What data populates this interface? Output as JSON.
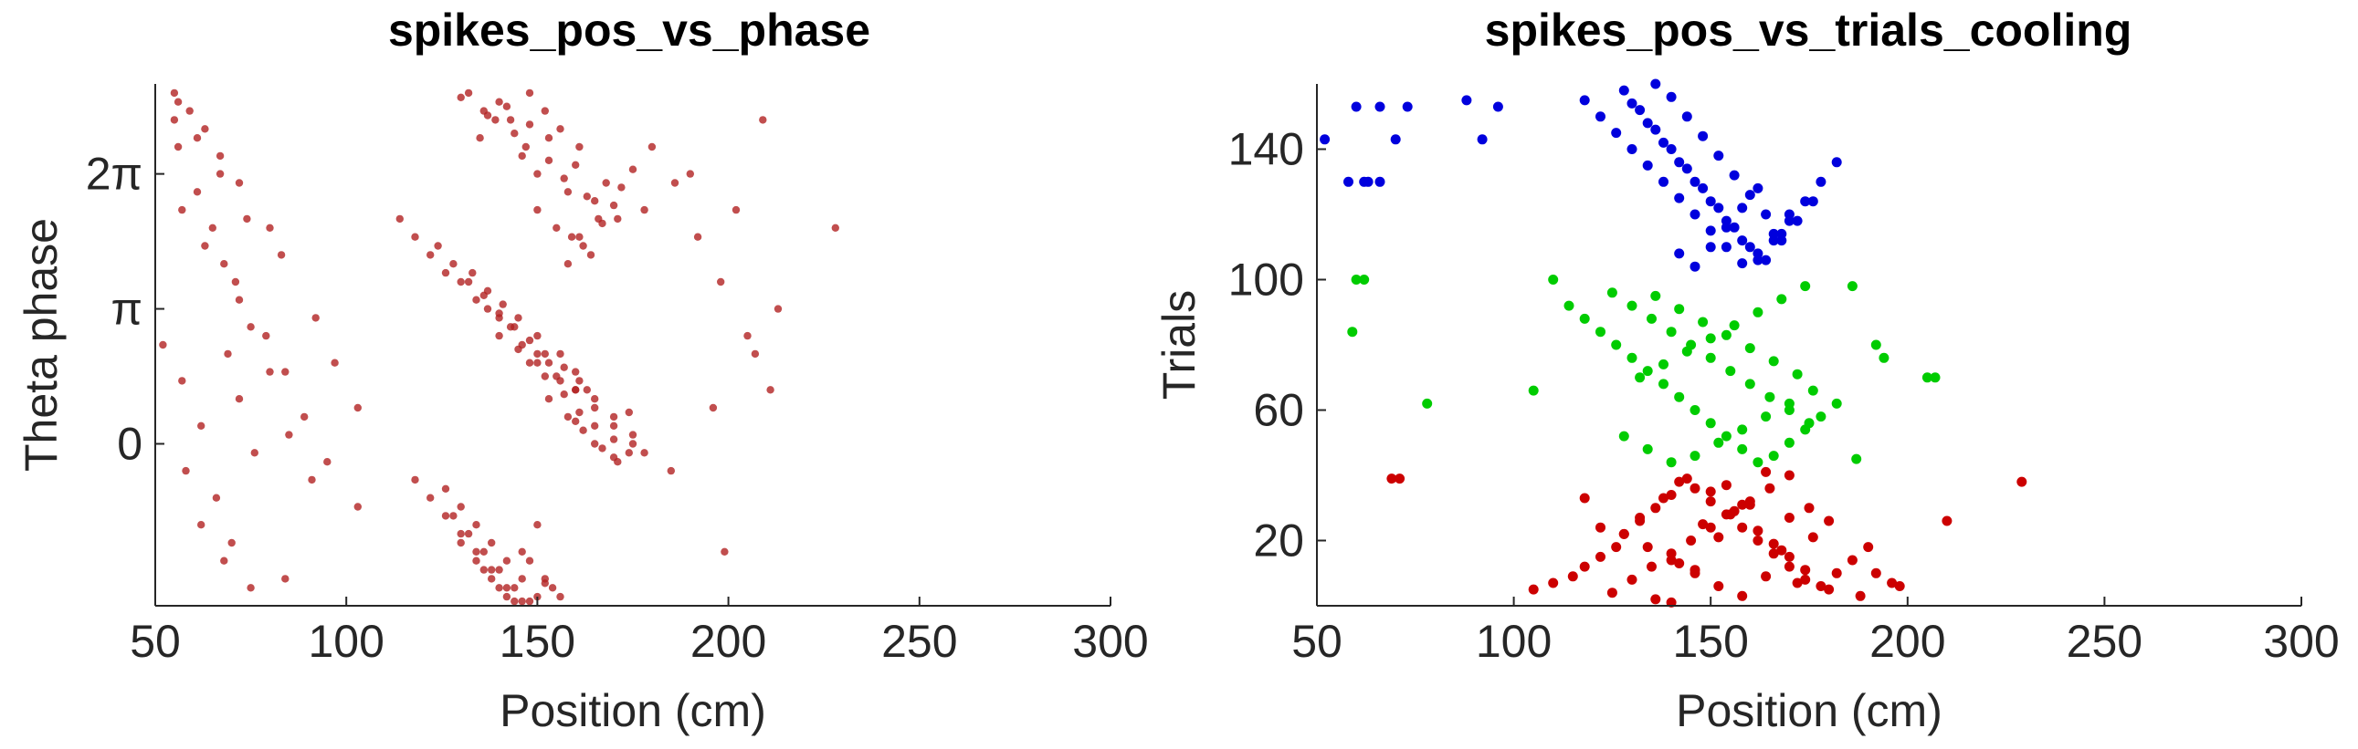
{
  "chart_data": [
    {
      "type": "scatter",
      "title": "spikes_pos_vs_phase",
      "xlabel": "Position (cm)",
      "ylabel": "Theta phase",
      "xlim": [
        50,
        300
      ],
      "ylim": [
        -1.8,
        4.0
      ],
      "xticks": [
        50,
        100,
        150,
        200,
        250,
        300
      ],
      "xtick_labels": [
        "50",
        "100",
        "150",
        "200",
        "250",
        "300"
      ],
      "yticks": [
        0,
        1.5,
        3.0
      ],
      "ytick_labels": [
        "0",
        "π",
        "2π"
      ],
      "grid": false,
      "color": "#b22222",
      "series": [
        {
          "x": [
            55,
            56,
            61,
            65,
            68,
            72,
            79,
            84,
            89,
            95,
            103,
            56,
            61,
            67,
            74,
            83,
            92,
            97,
            103,
            58,
            62,
            68,
            71,
            75,
            80,
            85,
            91,
            57,
            63,
            69,
            72,
            76,
            84,
            52,
            57,
            62,
            66,
            70,
            75,
            80,
            55,
            59,
            63,
            67,
            72,
            148,
            140,
            143,
            152,
            156,
            161,
            135,
            130,
            146,
            150,
            158,
            165,
            160,
            153,
            148,
            142,
            137,
            132,
            150,
            155,
            162,
            168,
            171,
            163,
            157,
            153,
            147,
            144,
            139,
            136,
            159,
            164,
            167,
            170,
            172,
            175,
            178,
            158,
            161,
            166,
            114,
            118,
            122,
            126,
            130,
            134,
            137,
            140,
            143,
            146,
            150,
            153,
            156,
            160,
            124,
            128,
            133,
            137,
            141,
            145,
            150,
            156,
            160,
            163,
            132,
            136,
            140,
            144,
            148,
            152,
            157,
            161,
            165,
            170,
            140,
            145,
            150,
            155,
            160,
            165,
            170,
            175,
            178,
            148,
            152,
            157,
            161,
            165,
            170,
            174,
            153,
            158,
            162,
            167,
            171,
            175,
            160,
            165,
            170,
            174,
            118,
            122,
            126,
            130,
            134,
            138,
            142,
            146,
            126,
            130,
            134,
            138,
            142,
            146,
            150,
            128,
            132,
            136,
            140,
            144,
            148,
            152,
            130,
            134,
            138,
            142,
            146,
            150,
            154,
            136,
            140,
            144,
            148,
            152,
            156,
            180,
            186,
            192,
            198,
            205,
            211,
            213,
            228,
            185,
            196,
            207,
            202,
            209,
            190,
            199
          ],
          "y": [
            3.6,
            3.3,
            2.8,
            2.4,
            2.0,
            1.6,
            1.2,
            0.8,
            0.3,
            -0.2,
            -0.7,
            3.8,
            3.4,
            3.0,
            2.5,
            2.1,
            1.4,
            0.9,
            0.4,
            -0.3,
            -0.9,
            -1.3,
            1.8,
            1.3,
            0.8,
            0.1,
            -0.4,
            2.6,
            2.2,
            1.0,
            0.5,
            -0.1,
            -1.5,
            1.1,
            0.7,
            0.2,
            -0.6,
            -1.1,
            -1.6,
            2.4,
            3.9,
            3.7,
            3.5,
            3.2,
            2.9,
            3.9,
            3.8,
            3.6,
            3.7,
            3.5,
            3.3,
            3.4,
            3.85,
            3.2,
            3.0,
            2.8,
            2.7,
            3.1,
            3.4,
            3.55,
            3.75,
            3.65,
            3.9,
            2.6,
            2.4,
            2.2,
            2.9,
            2.5,
            2.75,
            2.95,
            3.15,
            3.3,
            3.45,
            3.6,
            3.7,
            2.3,
            2.1,
            2.45,
            2.65,
            2.85,
            3.05,
            2.6,
            2.0,
            2.3,
            2.5,
            2.5,
            2.3,
            2.1,
            1.9,
            1.8,
            1.6,
            1.5,
            1.4,
            1.3,
            1.1,
            1.0,
            0.9,
            0.7,
            0.6,
            2.2,
            2.0,
            1.9,
            1.7,
            1.55,
            1.4,
            1.2,
            1.0,
            0.8,
            0.6,
            1.8,
            1.65,
            1.45,
            1.3,
            1.15,
            1.0,
            0.85,
            0.7,
            0.5,
            0.3,
            1.2,
            1.05,
            0.9,
            0.75,
            0.6,
            0.4,
            0.2,
            0.0,
            -0.1,
            0.9,
            0.75,
            0.55,
            0.35,
            0.2,
            0.05,
            -0.1,
            0.5,
            0.3,
            0.15,
            -0.05,
            -0.2,
            0.1,
            0.25,
            0.0,
            -0.15,
            0.35,
            -0.4,
            -0.6,
            -0.8,
            -1.0,
            -1.2,
            -1.4,
            -1.6,
            -1.75,
            -0.5,
            -0.7,
            -0.9,
            -1.1,
            -1.3,
            -1.5,
            -1.7,
            -0.8,
            -1.0,
            -1.2,
            -1.4,
            -1.6,
            -1.75,
            -1.5,
            -1.1,
            -1.3,
            -1.5,
            -1.7,
            -1.2,
            -0.9,
            -1.6,
            -1.4,
            -1.6,
            -1.75,
            -1.3,
            -1.55,
            -1.7,
            3.3,
            2.9,
            2.3,
            1.8,
            1.2,
            0.6,
            1.5,
            2.4,
            -0.3,
            0.4,
            1.0,
            2.6,
            3.6,
            3.0,
            -1.2
          ]
        }
      ]
    },
    {
      "type": "scatter",
      "title": "spikes_pos_vs_trials_cooling",
      "xlabel": "Position (cm)",
      "ylabel": "Trials",
      "xlim": [
        50,
        300
      ],
      "ylim": [
        0,
        160
      ],
      "xticks": [
        50,
        100,
        150,
        200,
        250,
        300
      ],
      "xtick_labels": [
        "50",
        "100",
        "150",
        "200",
        "250",
        "300"
      ],
      "yticks": [
        20,
        60,
        100,
        140
      ],
      "ytick_labels": [
        "20",
        "60",
        "100",
        "140"
      ],
      "grid": false,
      "series": [
        {
          "color": "#cc0000",
          "x": [
            105,
            110,
            115,
            118,
            122,
            126,
            128,
            132,
            136,
            140,
            142,
            146,
            150,
            154,
            158,
            162,
            166,
            170,
            174,
            178,
            182,
            186,
            190,
            125,
            130,
            135,
            140,
            145,
            150,
            155,
            160,
            165,
            170,
            175,
            180,
            128,
            134,
            140,
            146,
            152,
            158,
            164,
            170,
            176,
            132,
            138,
            144,
            150,
            156,
            162,
            168,
            174,
            180,
            136,
            142,
            148,
            154,
            160,
            166,
            172,
            140,
            146,
            152,
            158,
            164,
            170,
            118,
            122,
            188,
            192,
            196,
            198,
            210,
            229,
            69,
            71
          ],
          "y": [
            5,
            7,
            9,
            12,
            15,
            18,
            22,
            26,
            30,
            34,
            38,
            36,
            32,
            28,
            24,
            20,
            16,
            12,
            8,
            6,
            10,
            14,
            18,
            4,
            8,
            12,
            16,
            20,
            24,
            28,
            32,
            36,
            40,
            30,
            26,
            22,
            18,
            14,
            10,
            6,
            3,
            9,
            15,
            21,
            27,
            33,
            39,
            35,
            29,
            23,
            17,
            11,
            5,
            2,
            13,
            25,
            37,
            31,
            19,
            7,
            1,
            11,
            21,
            31,
            41,
            27,
            33,
            24,
            3,
            10,
            7,
            6,
            26,
            38,
            39,
            39
          ]
        },
        {
          "color": "#00cc00",
          "x": [
            60,
            62,
            59,
            78,
            105,
            110,
            114,
            118,
            122,
            126,
            130,
            134,
            138,
            142,
            146,
            150,
            154,
            158,
            162,
            166,
            170,
            174,
            178,
            182,
            186,
            125,
            130,
            135,
            140,
            145,
            150,
            155,
            160,
            165,
            170,
            175,
            128,
            134,
            140,
            146,
            152,
            158,
            164,
            170,
            176,
            132,
            138,
            144,
            150,
            156,
            162,
            168,
            174,
            136,
            142,
            148,
            154,
            160,
            166,
            172,
            187,
            192,
            194,
            205,
            207
          ],
          "y": [
            100,
            100,
            84,
            62,
            66,
            100,
            92,
            88,
            84,
            80,
            76,
            72,
            68,
            64,
            60,
            56,
            52,
            48,
            44,
            46,
            50,
            54,
            58,
            62,
            98,
            96,
            92,
            88,
            84,
            80,
            76,
            72,
            68,
            64,
            60,
            56,
            52,
            48,
            44,
            46,
            50,
            54,
            58,
            62,
            66,
            70,
            74,
            78,
            82,
            86,
            90,
            94,
            98,
            95,
            91,
            87,
            83,
            79,
            75,
            71,
            45,
            80,
            76,
            70,
            70
          ]
        },
        {
          "color": "#0000dd",
          "x": [
            52,
            60,
            63,
            66,
            70,
            73,
            62,
            66,
            58,
            88,
            92,
            96,
            118,
            122,
            126,
            130,
            134,
            138,
            142,
            146,
            150,
            154,
            158,
            162,
            166,
            170,
            174,
            178,
            182,
            128,
            132,
            136,
            140,
            144,
            148,
            152,
            156,
            160,
            164,
            168,
            172,
            176,
            130,
            134,
            138,
            142,
            146,
            150,
            154,
            158,
            162,
            166,
            170,
            136,
            140,
            144,
            148,
            152,
            156,
            160,
            164,
            168,
            142,
            146,
            150,
            154,
            158,
            162
          ],
          "y": [
            143,
            153,
            130,
            153,
            143,
            153,
            130,
            130,
            130,
            155,
            143,
            153,
            155,
            150,
            145,
            140,
            135,
            130,
            125,
            120,
            115,
            110,
            105,
            108,
            112,
            118,
            124,
            130,
            136,
            158,
            152,
            146,
            140,
            134,
            128,
            122,
            116,
            110,
            106,
            112,
            118,
            124,
            154,
            148,
            142,
            136,
            130,
            124,
            118,
            112,
            106,
            114,
            120,
            160,
            156,
            150,
            144,
            138,
            132,
            126,
            120,
            114,
            108,
            104,
            110,
            116,
            122,
            128
          ]
        }
      ]
    }
  ]
}
